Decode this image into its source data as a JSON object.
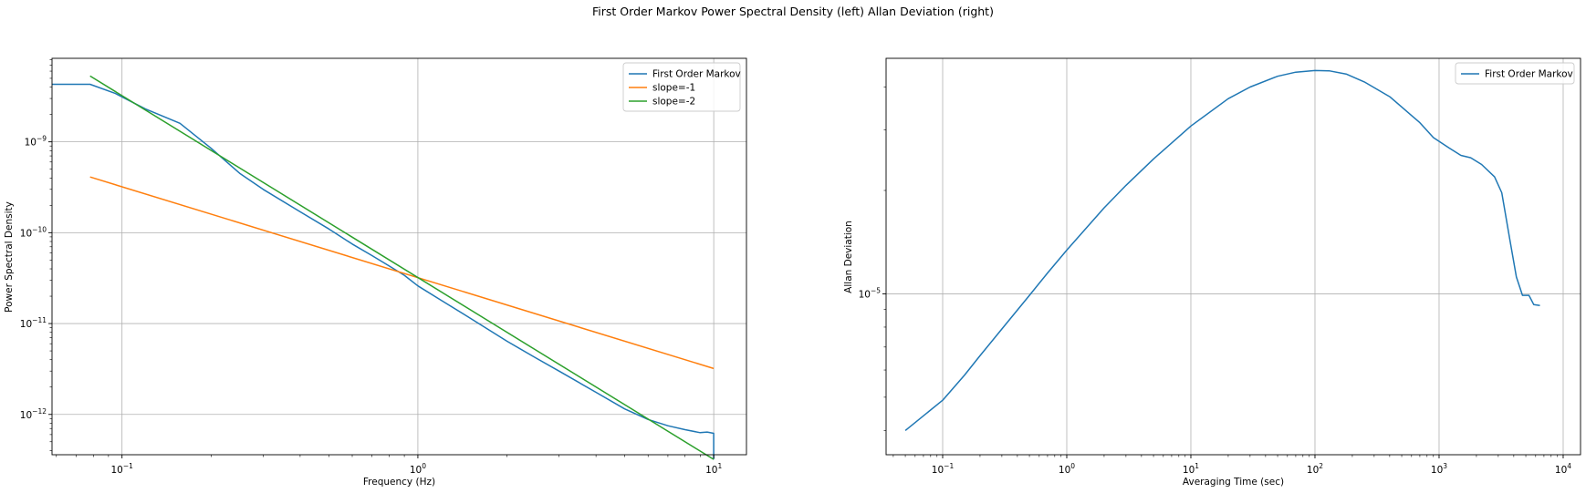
{
  "suptitle": "First Order Markov Power Spectral Density (left) Allan Deviation (right)",
  "chart_data": [
    {
      "type": "line",
      "xscale": "log",
      "yscale": "log",
      "xlabel": "Frequency (Hz)",
      "ylabel": "Power Spectral Density",
      "xlim": [
        0.058,
        12.9
      ],
      "ylim": [
        3.6e-13,
        8.3e-09
      ],
      "xticks": [
        {
          "value": 0.1,
          "label": "10^-1",
          "base": "10",
          "exp": "−1"
        },
        {
          "value": 1,
          "label": "10^0",
          "base": "10",
          "exp": "0"
        },
        {
          "value": 10,
          "label": "10^1",
          "base": "10",
          "exp": "1"
        }
      ],
      "yticks": [
        {
          "value": 1e-12,
          "label": "10^-12",
          "base": "10",
          "exp": "−12"
        },
        {
          "value": 1e-11,
          "label": "10^-11",
          "base": "10",
          "exp": "−11"
        },
        {
          "value": 1e-10,
          "label": "10^-10",
          "base": "10",
          "exp": "−10"
        },
        {
          "value": 1e-09,
          "label": "10^-9",
          "base": "10",
          "exp": "−9"
        }
      ],
      "grid": true,
      "legend_position": "top-right",
      "series": [
        {
          "name": "First Order Markov",
          "color": "#1f77b4",
          "x": [
            0.058,
            0.078,
            0.095,
            0.12,
            0.157,
            0.2,
            0.25,
            0.3,
            0.4,
            0.5,
            0.6,
            0.7,
            0.8,
            0.9,
            1.0,
            1.2,
            1.5,
            2.0,
            2.5,
            3.0,
            4.0,
            5.0,
            6.0,
            7.0,
            8.0,
            9.0,
            9.5,
            10.0,
            10.0
          ],
          "y": [
            4.3e-09,
            4.3e-09,
            3.4e-09,
            2.3e-09,
            1.6e-09,
            8.5e-10,
            4.5e-10,
            3e-10,
            1.7e-10,
            1.1e-10,
            7.5e-11,
            5.6e-11,
            4.3e-11,
            3.4e-11,
            2.6e-11,
            1.8e-11,
            1.15e-11,
            6.4e-12,
            4.2e-12,
            3e-12,
            1.75e-12,
            1.15e-12,
            8.8e-13,
            7.5e-13,
            6.8e-13,
            6.3e-13,
            6.4e-13,
            6.2e-13,
            3.2e-13
          ]
        },
        {
          "name": "slope=-1",
          "color": "#ff7f0e",
          "x": [
            0.078,
            10.0
          ],
          "y": [
            4.1e-10,
            3.2e-12
          ]
        },
        {
          "name": "slope=-2",
          "color": "#2ca02c",
          "x": [
            0.078,
            10.0
          ],
          "y": [
            5.3e-09,
            3.2e-13
          ]
        }
      ]
    },
    {
      "type": "line",
      "xscale": "log",
      "yscale": "log",
      "xlabel": "Averaging Time (sec)",
      "ylabel": "Allan Deviation",
      "xlim": [
        0.035,
        13800
      ],
      "ylim": [
        3.4e-06,
        4.85e-05
      ],
      "xticks": [
        {
          "value": 0.1,
          "label": "10^-1",
          "base": "10",
          "exp": "−1"
        },
        {
          "value": 1,
          "label": "10^0",
          "base": "10",
          "exp": "0"
        },
        {
          "value": 10,
          "label": "10^1",
          "base": "10",
          "exp": "1"
        },
        {
          "value": 100,
          "label": "10^2",
          "base": "10",
          "exp": "2"
        },
        {
          "value": 1000,
          "label": "10^3",
          "base": "10",
          "exp": "3"
        },
        {
          "value": 10000,
          "label": "10^4",
          "base": "10",
          "exp": "4"
        }
      ],
      "yticks": [
        {
          "value": 1e-05,
          "label": "10^-5",
          "base": "10",
          "exp": "−5"
        }
      ],
      "grid": true,
      "legend_position": "top-right",
      "series": [
        {
          "name": "First Order Markov",
          "color": "#1f77b4",
          "x": [
            0.05,
            0.1,
            0.15,
            0.2,
            0.3,
            0.5,
            0.7,
            1,
            2,
            3,
            5,
            10,
            20,
            30,
            50,
            70,
            100,
            130,
            180,
            250,
            400,
            700,
            900,
            1200,
            1500,
            1800,
            2200,
            2800,
            3200,
            3700,
            4200,
            4700,
            5300,
            5800,
            6500
          ],
          "y": [
            4e-06,
            4.9e-06,
            5.8e-06,
            6.6e-06,
            7.9e-06,
            9.9e-06,
            1.15e-05,
            1.34e-05,
            1.78e-05,
            2.07e-05,
            2.47e-05,
            3.08e-05,
            3.7e-05,
            4e-05,
            4.3e-05,
            4.42e-05,
            4.47e-05,
            4.46e-05,
            4.36e-05,
            4.14e-05,
            3.75e-05,
            3.15e-05,
            2.85e-05,
            2.66e-05,
            2.53e-05,
            2.49e-05,
            2.38e-05,
            2.19e-05,
            1.97e-05,
            1.45e-05,
            1.12e-05,
            9.9e-06,
            9.9e-06,
            9.3e-06,
            9.25e-06
          ]
        }
      ]
    }
  ]
}
